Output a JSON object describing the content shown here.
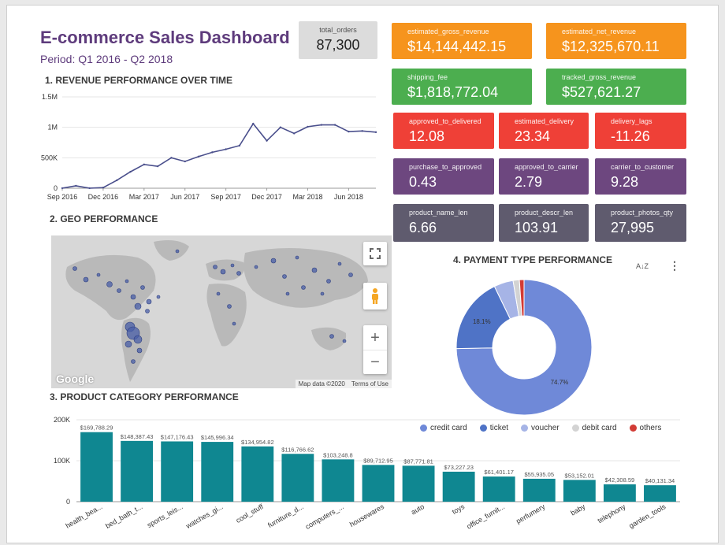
{
  "header": {
    "title": "E-commerce Sales Dashboard",
    "period": "Period: Q1 2016 - Q2 2018"
  },
  "sections": {
    "revenue": "1. REVENUE PERFORMANCE OVER TIME",
    "geo": "2. GEO PERFORMANCE",
    "category": "3. PRODUCT CATEGORY PERFORMANCE",
    "payment": "4. PAYMENT TYPE PERFORMANCE"
  },
  "kpis": {
    "total_orders": {
      "label": "total_orders",
      "value": "87,300"
    },
    "est_gross_revenue": {
      "label": "estimated_gross_revenue",
      "value": "$14,144,442.15"
    },
    "est_net_revenue": {
      "label": "estimated_net_revenue",
      "value": "$12,325,670.11"
    },
    "shipping_fee": {
      "label": "shipping_fee",
      "value": "$1,818,772.04"
    },
    "tracked_gross_revenue": {
      "label": "tracked_gross_revenue",
      "value": "$527,621.27"
    },
    "approved_to_delivered": {
      "label": "approved_to_delivered",
      "value": "12.08"
    },
    "estimated_delivery": {
      "label": "estimated_delivery",
      "value": "23.34"
    },
    "delivery_lags": {
      "label": "delivery_lags",
      "value": "-11.26"
    },
    "purchase_to_approved": {
      "label": "purchase_to_approved",
      "value": "0.43"
    },
    "approved_to_carrier": {
      "label": "approved_to_carrier",
      "value": "2.79"
    },
    "carrier_to_customer": {
      "label": "carrier_to_customer",
      "value": "9.28"
    },
    "product_name_len": {
      "label": "product_name_len",
      "value": "6.66"
    },
    "product_descr_len": {
      "label": "product_descr_len",
      "value": "103.91"
    },
    "product_photos_qty": {
      "label": "product_photos_qty",
      "value": "27,995"
    }
  },
  "colors": {
    "orange": "#f6941d",
    "green": "#4cae4f",
    "red": "#ef4037",
    "purple": "#6d477f",
    "slate": "#5f5b6e",
    "line": "#4a4f8c",
    "bar": "#0f8791",
    "credit_card": "#6f89d8",
    "ticket": "#4f73c6",
    "voucher": "#a6b4e6",
    "debit_card": "#d3d3d3",
    "others": "#d23b35"
  },
  "map": {
    "attribution": "Map data ©2020",
    "terms": "Terms of Use",
    "logo": "Google",
    "zoom_in": "+",
    "zoom_out": "−"
  },
  "payment": {
    "sort_icon": "A↓Z",
    "menu_icon": "⋮"
  },
  "chart_data": [
    {
      "type": "line",
      "x": [
        "2016-09",
        "2016-10",
        "2016-11",
        "2016-12",
        "2017-01",
        "2017-02",
        "2017-03",
        "2017-04",
        "2017-05",
        "2017-06",
        "2017-07",
        "2017-08",
        "2017-09",
        "2017-10",
        "2017-11",
        "2017-12",
        "2018-01",
        "2018-02",
        "2018-03",
        "2018-04",
        "2018-05",
        "2018-06",
        "2018-07",
        "2018-08"
      ],
      "values": [
        1000,
        40000,
        1000,
        10000,
        130000,
        270000,
        390000,
        360000,
        500000,
        440000,
        520000,
        590000,
        640000,
        700000,
        1060000,
        780000,
        1000000,
        900000,
        1010000,
        1040000,
        1040000,
        930000,
        940000,
        920000
      ],
      "xticks": [
        "Sep 2016",
        "Dec 2016",
        "Mar 2017",
        "Jun 2017",
        "Sep 2017",
        "Dec 2017",
        "Mar 2018",
        "Jun 2018"
      ],
      "yticks": [
        "0",
        "500K",
        "1M",
        "1.5M"
      ],
      "ylim": [
        0,
        1500000
      ]
    },
    {
      "type": "bar",
      "categories": [
        "health_bea...",
        "bed_bath_t...",
        "sports_leis...",
        "watches_gi...",
        "cool_stuff",
        "furniture_d...",
        "computers_...",
        "housewares",
        "auto",
        "toys",
        "office_furnit...",
        "perfumery",
        "baby",
        "telephony",
        "garden_tools"
      ],
      "values": [
        169788.29,
        148387.43,
        147176.43,
        145996.34,
        134954.82,
        116766.62,
        103248.8,
        89712.95,
        87771.81,
        73227.23,
        61401.17,
        55935.05,
        53152.01,
        42308.59,
        40131.34
      ],
      "labels": [
        "$169,788.29",
        "$148,387.43",
        "$147,176.43",
        "$145,996.34",
        "$134,954.82",
        "$116,766.62",
        "$103,248.8",
        "$89,712.95",
        "$87,771.81",
        "$73,227.23",
        "$61,401.17",
        "$55,935.05",
        "$53,152.01",
        "$42,308.59",
        "$40,131.34"
      ],
      "yticks": [
        "0",
        "100K",
        "200K"
      ],
      "ylim": [
        0,
        200000
      ]
    },
    {
      "type": "pie",
      "categories": [
        "credit card",
        "ticket",
        "voucher",
        "debit card",
        "others"
      ],
      "values": [
        74.7,
        18.1,
        4.6,
        1.5,
        1.1
      ],
      "slice_labels": [
        "74.7%",
        "18.1%",
        "",
        "",
        ""
      ]
    }
  ]
}
